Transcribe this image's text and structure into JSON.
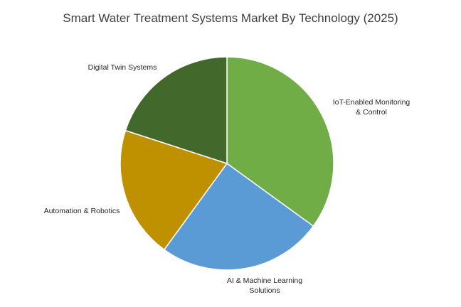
{
  "chart_data": {
    "type": "pie",
    "title": "Smart Water Treatment Systems Market By Technology (2025)",
    "start_angle_deg": 0,
    "direction": "clockwise",
    "legend": "none",
    "data_labels": "category name outside slice",
    "slices": [
      {
        "label": "IoT-Enabled Monitoring & Control",
        "label_lines": [
          "IoT-Enabled Monitoring",
          "& Control"
        ],
        "value": 35,
        "color": "#70ad47"
      },
      {
        "label": "AI & Machine Learning Solutions",
        "label_lines": [
          "AI & Machine Learning",
          "Solutions"
        ],
        "value": 25,
        "color": "#5b9bd5"
      },
      {
        "label": "Automation & Robotics",
        "label_lines": [
          "Automation & Robotics"
        ],
        "value": 20,
        "color": "#bf9000"
      },
      {
        "label": "Digital Twin Systems",
        "label_lines": [
          "Digital Twin Systems"
        ],
        "value": 20,
        "color": "#43682b"
      }
    ]
  }
}
